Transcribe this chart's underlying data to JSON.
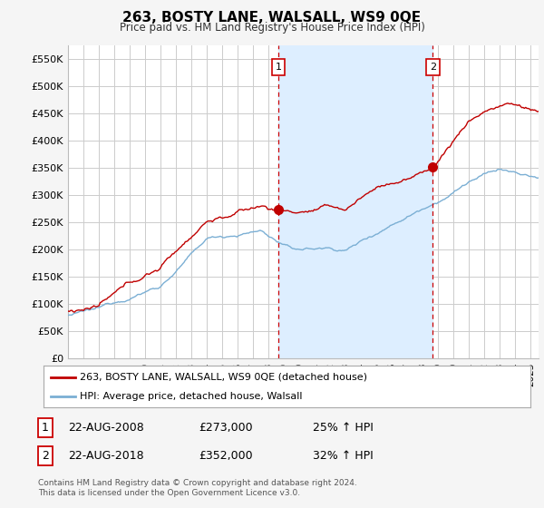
{
  "title": "263, BOSTY LANE, WALSALL, WS9 0QE",
  "subtitle": "Price paid vs. HM Land Registry's House Price Index (HPI)",
  "ylabel_ticks": [
    "£0",
    "£50K",
    "£100K",
    "£150K",
    "£200K",
    "£250K",
    "£300K",
    "£350K",
    "£400K",
    "£450K",
    "£500K",
    "£550K"
  ],
  "ytick_values": [
    0,
    50000,
    100000,
    150000,
    200000,
    250000,
    300000,
    350000,
    400000,
    450000,
    500000,
    550000
  ],
  "ylim": [
    0,
    575000
  ],
  "xlim_start": 1995.3,
  "xlim_end": 2025.5,
  "sale1_x": 2008.64,
  "sale1_y": 273000,
  "sale1_label": "1",
  "sale1_date": "22-AUG-2008",
  "sale1_price": "£273,000",
  "sale1_hpi": "25% ↑ HPI",
  "sale2_x": 2018.64,
  "sale2_y": 352000,
  "sale2_label": "2",
  "sale2_date": "22-AUG-2018",
  "sale2_price": "£352,000",
  "sale2_hpi": "32% ↑ HPI",
  "line1_color": "#c00000",
  "line2_color": "#7bafd4",
  "vline_color": "#cc0000",
  "band_color": "#ddeeff",
  "background_color": "#f5f5f5",
  "plot_bg_color": "#ffffff",
  "legend_label1": "263, BOSTY LANE, WALSALL, WS9 0QE (detached house)",
  "legend_label2": "HPI: Average price, detached house, Walsall",
  "footer": "Contains HM Land Registry data © Crown copyright and database right 2024.\nThis data is licensed under the Open Government Licence v3.0."
}
